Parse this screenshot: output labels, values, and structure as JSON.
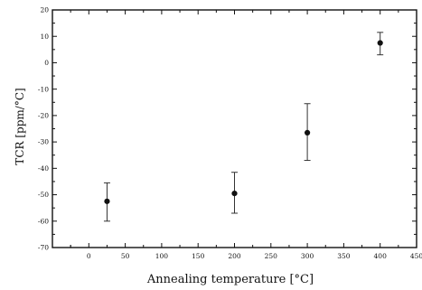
{
  "chart_data": {
    "type": "scatter",
    "xlabel": "Annealing temperature [°C]",
    "ylabel": "TCR [ppm/°C]",
    "xlim": [
      -50,
      450
    ],
    "ylim": [
      -70,
      20
    ],
    "x_ticks": [
      "0",
      "50",
      "100",
      "150",
      "200",
      "250",
      "300",
      "350",
      "400",
      "450"
    ],
    "y_ticks": [
      "20",
      "10",
      "0",
      "-10",
      "-20",
      "-30",
      "-40",
      "-50",
      "-60",
      "-70"
    ],
    "series": [
      {
        "points": [
          {
            "x": 25,
            "y": -52.5,
            "err_low": -60,
            "err_high": -45.5
          },
          {
            "x": 200,
            "y": -49.5,
            "err_low": -57,
            "err_high": -41.5
          },
          {
            "x": 300,
            "y": -26.5,
            "err_low": -37,
            "err_high": -15.5
          },
          {
            "x": 400,
            "y": 7.5,
            "err_low": 3,
            "err_high": 11.5
          }
        ]
      }
    ],
    "colors": {
      "axis": "#111111",
      "points": "#111111",
      "error_bars": "#333333"
    }
  }
}
